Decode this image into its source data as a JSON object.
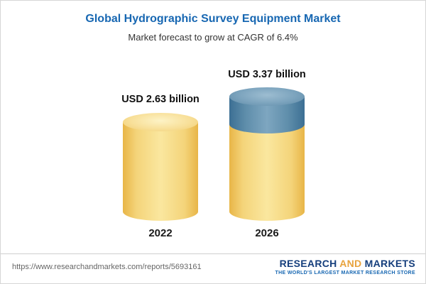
{
  "header": {
    "title": "Global Hydrographic Survey Equipment Market",
    "subtitle": "Market forecast to grow at CAGR of 6.4%"
  },
  "chart_data": {
    "type": "bar",
    "title": "Global Hydrographic Survey Equipment Market",
    "subtitle": "Market forecast to grow at CAGR of 6.4%",
    "categories": [
      "2022",
      "2026"
    ],
    "values": [
      2.63,
      3.37
    ],
    "value_labels": [
      "USD 2.63 billion",
      "USD 3.37 billion"
    ],
    "unit": "USD billion",
    "cagr": "6.4%",
    "ylim": [
      0,
      3.5
    ],
    "grid": false,
    "legend": "none",
    "bar_style": "3d-cylinder",
    "colors": {
      "bar_base": "#F4D47A",
      "bar_growth_segment": "#5F8EAB"
    }
  },
  "footer": {
    "url": "https://www.researchandmarkets.com/reports/5693161",
    "logo": {
      "word1": "RESEARCH",
      "word2": "AND",
      "word3": "MARKETS",
      "tagline": "THE WORLD'S LARGEST MARKET RESEARCH STORE"
    }
  },
  "colors": {
    "title_blue": "#1767B2",
    "logo_navy": "#153E7C",
    "logo_gold": "#E8A33D"
  }
}
